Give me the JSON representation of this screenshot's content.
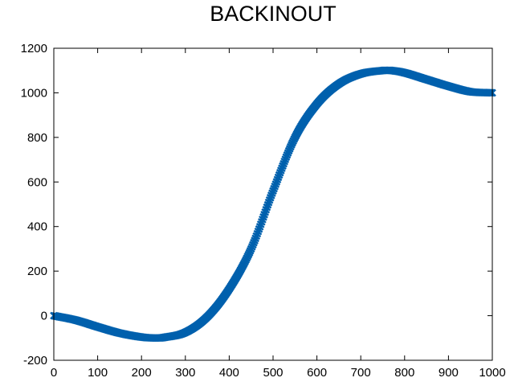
{
  "chart_data": {
    "type": "scatter",
    "title": "BACKINOUT",
    "xlabel": "",
    "ylabel": "",
    "xlim": [
      0,
      1000
    ],
    "ylim": [
      -200,
      1200
    ],
    "x_ticks": [
      "0",
      "100",
      "200",
      "300",
      "400",
      "500",
      "600",
      "700",
      "800",
      "900",
      "1000"
    ],
    "y_ticks": [
      "1200",
      "1000",
      "800",
      "600",
      "400",
      "200",
      "0",
      "-200"
    ],
    "grid": false,
    "legend": "none",
    "marker": "x",
    "series_color": "#0060ad",
    "x": [
      0,
      50,
      100,
      150,
      200,
      230,
      250,
      300,
      350,
      400,
      450,
      500,
      550,
      600,
      650,
      700,
      750,
      770,
      800,
      850,
      900,
      950,
      1000
    ],
    "y": [
      0,
      -20,
      -50,
      -78,
      -96,
      -100,
      -98,
      -75,
      -5,
      120,
      300,
      560,
      800,
      950,
      1040,
      1085,
      1100,
      1100,
      1090,
      1060,
      1030,
      1005,
      1000
    ]
  }
}
